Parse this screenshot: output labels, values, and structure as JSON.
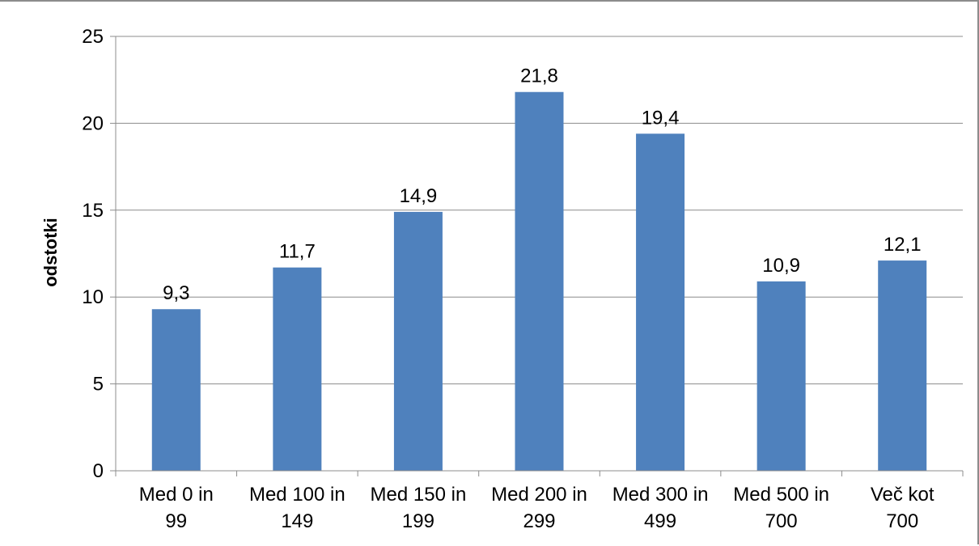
{
  "chart_data": {
    "type": "bar",
    "ylabel": "odstotki",
    "xlabel": "",
    "ylim": [
      0,
      25
    ],
    "ytick_step": 5,
    "grid": true,
    "legend": "none",
    "colors": {
      "bar": "#4f81bd",
      "grid": "#8c8c8c",
      "axis": "#8c8c8c"
    },
    "categories": [
      [
        "Med 0 in",
        "99"
      ],
      [
        "Med 100 in",
        "149"
      ],
      [
        "Med 150 in",
        "199"
      ],
      [
        "Med 200 in",
        "299"
      ],
      [
        "Med 300 in",
        "499"
      ],
      [
        "Med 500 in",
        "700"
      ],
      [
        "Več kot",
        "700"
      ]
    ],
    "values": [
      9.3,
      11.7,
      14.9,
      21.8,
      19.4,
      10.9,
      12.1
    ],
    "value_labels": [
      "9,3",
      "11,7",
      "14,9",
      "21,8",
      "19,4",
      "10,9",
      "12,1"
    ]
  }
}
